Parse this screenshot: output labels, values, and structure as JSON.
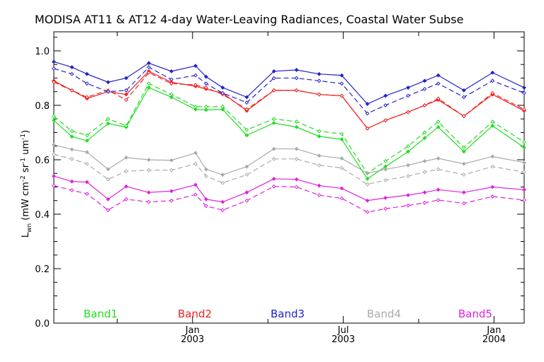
{
  "chart_data": {
    "type": "line",
    "title": "MODISA AT11 & AT12 4-day Water-Leaving Radiances, Coastal Water Subse",
    "ylabel_main": "L",
    "ylabel_sub": "wn",
    "ylabel_rest": " (mW cm",
    "ylabel_exp1": "-2",
    "ylabel_mid": " sr",
    "ylabel_exp2": "-1",
    "ylabel_end": " um",
    "ylabel_exp3": "-1",
    "ylabel_close": ")",
    "ylim": [
      0,
      1.07
    ],
    "yticks": [
      "0.0",
      "0.2",
      "0.4",
      "0.6",
      "0.8",
      "1.0"
    ],
    "ytick_values": [
      0,
      0.2,
      0.4,
      0.6,
      0.8,
      1.0
    ],
    "xticks": [
      {
        "month": "Jan",
        "year": "2003",
        "x": 2003.0
      },
      {
        "month": "Jul",
        "year": "2003",
        "x": 2003.5
      },
      {
        "month": "Jan",
        "year": "2004",
        "x": 2004.0
      }
    ],
    "xlim": [
      2002.54,
      2004.1
    ],
    "x": [
      2002.54,
      2002.6,
      2002.65,
      2002.72,
      2002.78,
      2002.855,
      2002.93,
      2003.01,
      2003.045,
      2003.1,
      2003.18,
      2003.27,
      2003.345,
      2003.42,
      2003.495,
      2003.58,
      2003.64,
      2003.715,
      2003.77,
      2003.815,
      2003.9,
      2003.995,
      2004.1
    ],
    "grid": false,
    "legend_placement": "bottom",
    "series": [
      {
        "name": "Band1",
        "color": "#22dd22",
        "solid": [
          0.745,
          0.685,
          0.67,
          0.733,
          0.72,
          0.865,
          0.83,
          0.785,
          0.783,
          0.785,
          0.69,
          0.735,
          0.72,
          0.686,
          0.675,
          0.53,
          0.575,
          0.63,
          0.68,
          0.72,
          0.63,
          0.725,
          0.645
        ],
        "dashed": [
          0.76,
          0.705,
          0.69,
          0.75,
          0.725,
          0.88,
          0.84,
          0.795,
          0.795,
          0.795,
          0.71,
          0.75,
          0.74,
          0.705,
          0.695,
          0.55,
          0.595,
          0.65,
          0.7,
          0.74,
          0.645,
          0.74,
          0.665
        ]
      },
      {
        "name": "Band2",
        "color": "#ee2222",
        "solid": [
          0.89,
          0.855,
          0.825,
          0.85,
          0.84,
          0.925,
          0.885,
          0.87,
          0.86,
          0.845,
          0.78,
          0.855,
          0.855,
          0.84,
          0.835,
          0.715,
          0.745,
          0.775,
          0.8,
          0.82,
          0.76,
          0.84,
          0.78
        ],
        "dashed": [
          0.885,
          0.855,
          0.83,
          0.855,
          0.82,
          0.92,
          0.88,
          0.875,
          0.865,
          0.84,
          0.785,
          0.855,
          0.855,
          0.84,
          0.835,
          0.715,
          0.745,
          0.775,
          0.8,
          0.825,
          0.76,
          0.845,
          0.785
        ]
      },
      {
        "name": "Band3",
        "color": "#2222cc",
        "solid": [
          0.96,
          0.94,
          0.915,
          0.885,
          0.9,
          0.955,
          0.925,
          0.945,
          0.905,
          0.865,
          0.83,
          0.925,
          0.93,
          0.915,
          0.91,
          0.805,
          0.835,
          0.865,
          0.89,
          0.91,
          0.855,
          0.92,
          0.865
        ],
        "dashed": [
          0.935,
          0.915,
          0.88,
          0.85,
          0.855,
          0.94,
          0.895,
          0.91,
          0.88,
          0.845,
          0.81,
          0.9,
          0.9,
          0.89,
          0.88,
          0.77,
          0.8,
          0.835,
          0.86,
          0.88,
          0.83,
          0.89,
          0.845
        ]
      },
      {
        "name": "Band4",
        "color": "#aaaaaa",
        "solid": [
          0.655,
          0.638,
          0.628,
          0.565,
          0.608,
          0.6,
          0.598,
          0.625,
          0.565,
          0.545,
          0.575,
          0.64,
          0.64,
          0.615,
          0.605,
          0.55,
          0.565,
          0.58,
          0.595,
          0.605,
          0.585,
          0.612,
          0.59
        ],
        "dashed": [
          0.62,
          0.603,
          0.585,
          0.528,
          0.558,
          0.562,
          0.562,
          0.585,
          0.54,
          0.515,
          0.545,
          0.603,
          0.603,
          0.58,
          0.57,
          0.51,
          0.525,
          0.54,
          0.555,
          0.565,
          0.545,
          0.575,
          0.555
        ]
      },
      {
        "name": "Band5",
        "color": "#dd22dd",
        "solid": [
          0.54,
          0.52,
          0.518,
          0.455,
          0.502,
          0.48,
          0.485,
          0.508,
          0.455,
          0.445,
          0.48,
          0.53,
          0.528,
          0.505,
          0.495,
          0.45,
          0.46,
          0.47,
          0.48,
          0.49,
          0.48,
          0.5,
          0.49
        ],
        "dashed": [
          0.505,
          0.488,
          0.475,
          0.415,
          0.455,
          0.445,
          0.45,
          0.472,
          0.43,
          0.415,
          0.45,
          0.502,
          0.5,
          0.47,
          0.458,
          0.408,
          0.42,
          0.432,
          0.442,
          0.452,
          0.44,
          0.465,
          0.452
        ]
      }
    ]
  }
}
